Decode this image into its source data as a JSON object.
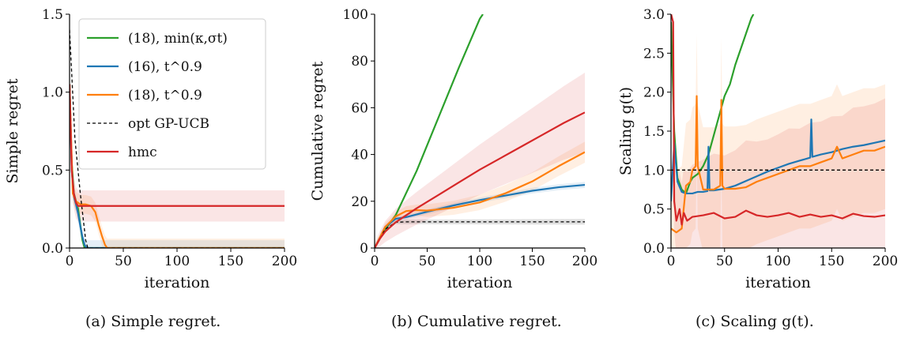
{
  "captions": [
    "(a) Simple regret.",
    "(b) Cumulative regret.",
    "(c) Scaling g(t)."
  ],
  "colors": {
    "green": "#2ca02c",
    "blue": "#1f77b4",
    "orange": "#ff7f0e",
    "black": "#000000",
    "red": "#d62728"
  },
  "chart_data": [
    {
      "type": "line",
      "xlabel": "iteration",
      "ylabel": "Simple regret",
      "xlim": [
        0,
        200
      ],
      "ylim": [
        0,
        1.5
      ],
      "xticks": [
        0,
        50,
        100,
        150,
        200
      ],
      "yticks": [
        0.0,
        0.5,
        1.0,
        1.5
      ],
      "ytick_labels": [
        "0.0",
        "0.5",
        "1.0",
        "1.5"
      ],
      "legend": {
        "placement": "upper right",
        "entries": [
          "(18), min(κ,σt)",
          "(16), t^0.9",
          "(18), t^0.9",
          "opt GP-UCB",
          "hmc"
        ]
      },
      "series": [
        {
          "name": "(18), min(κ,σt)",
          "color": "green",
          "x": [
            0,
            2,
            4,
            6,
            8,
            10,
            12,
            14,
            200
          ],
          "y": [
            1.05,
            0.55,
            0.35,
            0.3,
            0.25,
            0.15,
            0.05,
            0.0,
            0.0
          ]
        },
        {
          "name": "(16), t^0.9",
          "color": "blue",
          "band": 0.05,
          "x": [
            0,
            2,
            4,
            6,
            8,
            10,
            12,
            14,
            16,
            200
          ],
          "y": [
            1.05,
            0.5,
            0.33,
            0.28,
            0.22,
            0.14,
            0.07,
            0.02,
            0.0,
            0.0
          ]
        },
        {
          "name": "(18), t^0.9",
          "color": "orange",
          "band": 0.06,
          "x": [
            0,
            3,
            6,
            10,
            15,
            20,
            24,
            27,
            30,
            33,
            35,
            200
          ],
          "y": [
            1.05,
            0.35,
            0.3,
            0.28,
            0.28,
            0.27,
            0.23,
            0.15,
            0.08,
            0.02,
            0.0,
            0.0
          ]
        },
        {
          "name": "opt GP-UCB",
          "color": "black",
          "dashed": true,
          "x": [
            0,
            5,
            10,
            15,
            17,
            200
          ],
          "y": [
            1.4,
            0.7,
            0.35,
            0.05,
            0.0,
            0.0
          ]
        },
        {
          "name": "hmc",
          "color": "red",
          "band": 0.1,
          "x": [
            0,
            2,
            4,
            6,
            8,
            200
          ],
          "y": [
            1.05,
            0.5,
            0.35,
            0.29,
            0.27,
            0.27
          ]
        }
      ]
    },
    {
      "type": "line",
      "xlabel": "iteration",
      "ylabel": "Cumulative regret",
      "xlim": [
        0,
        200
      ],
      "ylim": [
        0,
        100
      ],
      "xticks": [
        0,
        50,
        100,
        150,
        200
      ],
      "yticks": [
        0,
        20,
        40,
        60,
        80,
        100
      ],
      "series": [
        {
          "name": "(18), min(κ,σt)",
          "color": "green",
          "x": [
            0,
            10,
            20,
            40,
            60,
            80,
            100,
            103
          ],
          "y": [
            0,
            8,
            14,
            33,
            55,
            77,
            98,
            100
          ]
        },
        {
          "name": "(16), t^0.9",
          "color": "blue",
          "band": [
            0.8,
            1.3
          ],
          "x": [
            0,
            10,
            20,
            30,
            50,
            75,
            100,
            125,
            150,
            175,
            200
          ],
          "y": [
            0,
            9,
            12.5,
            13.2,
            15.5,
            18.2,
            20.5,
            22.5,
            24.5,
            26,
            27
          ]
        },
        {
          "name": "(18), t^0.9",
          "color": "orange",
          "band": [
            1.2,
            4.5
          ],
          "x": [
            0,
            10,
            20,
            30,
            40,
            50,
            75,
            100,
            125,
            150,
            175,
            200
          ],
          "y": [
            0,
            9,
            13.5,
            15.8,
            16.2,
            16,
            17.2,
            19.5,
            23.5,
            28.5,
            35,
            41
          ]
        },
        {
          "name": "opt GP-UCB",
          "color": "black",
          "dashed": true,
          "band": [
            0.3,
            1.2
          ],
          "x": [
            0,
            10,
            20,
            30,
            200
          ],
          "y": [
            0,
            8,
            11,
            11.2,
            11.2
          ]
        },
        {
          "name": "hmc",
          "color": "red",
          "band": [
            2,
            17
          ],
          "x": [
            0,
            5,
            10,
            20,
            40,
            60,
            80,
            100,
            120,
            140,
            160,
            180,
            200
          ],
          "y": [
            0,
            4,
            7,
            11,
            17,
            22.5,
            28,
            33.5,
            38.5,
            43.5,
            48.5,
            53.5,
            58
          ]
        }
      ]
    },
    {
      "type": "line",
      "xlabel": "iteration",
      "ylabel": "Scaling g(t)",
      "xlim": [
        0,
        200
      ],
      "ylim": [
        0,
        3
      ],
      "xticks": [
        0,
        50,
        100,
        150,
        200
      ],
      "yticks": [
        0.0,
        0.5,
        1.0,
        1.5,
        2.0,
        2.5,
        3.0
      ],
      "ytick_labels": [
        "0.0",
        "0.5",
        "1.0",
        "1.5",
        "2.0",
        "2.5",
        "3.0"
      ],
      "series": [
        {
          "name": "(18), min(κ,σt)",
          "color": "green",
          "x": [
            0,
            3,
            6,
            10,
            14,
            18,
            20,
            25,
            30,
            35,
            40,
            45,
            50,
            55,
            60,
            65,
            70,
            75,
            77
          ],
          "y": [
            2.9,
            1.5,
            0.9,
            0.75,
            0.7,
            0.85,
            0.9,
            0.95,
            1.05,
            1.2,
            1.45,
            1.7,
            1.95,
            2.1,
            2.35,
            2.55,
            2.75,
            2.95,
            3.0
          ]
        },
        {
          "name": "(16), t^0.9",
          "color": "blue",
          "x": [
            0,
            3,
            6,
            10,
            14,
            20,
            25,
            30,
            34,
            35,
            36,
            40,
            50,
            60,
            70,
            80,
            90,
            100,
            110,
            120,
            130,
            131,
            132,
            140,
            150,
            160,
            170,
            180,
            190,
            200
          ],
          "y": [
            0.6,
            1.35,
            0.85,
            0.72,
            0.7,
            0.7,
            0.72,
            0.72,
            0.73,
            1.3,
            0.74,
            0.74,
            0.76,
            0.8,
            0.86,
            0.92,
            0.98,
            1.03,
            1.08,
            1.12,
            1.16,
            1.65,
            1.17,
            1.2,
            1.23,
            1.27,
            1.3,
            1.32,
            1.35,
            1.38
          ]
        },
        {
          "name": "(18), t^0.9",
          "color": "orange",
          "band": [
            0.8,
            0.8
          ],
          "x": [
            0,
            5,
            10,
            14,
            18,
            20,
            23,
            24,
            25,
            30,
            40,
            46,
            47,
            48,
            50,
            60,
            70,
            80,
            90,
            100,
            110,
            120,
            130,
            140,
            150,
            155,
            160,
            170,
            180,
            190,
            200
          ],
          "y": [
            0.25,
            0.2,
            0.25,
            0.8,
            0.85,
            1.0,
            1.05,
            1.95,
            1.05,
            0.75,
            0.75,
            0.8,
            1.9,
            0.8,
            0.76,
            0.76,
            0.78,
            0.85,
            0.9,
            0.95,
            1.0,
            1.05,
            1.05,
            1.1,
            1.15,
            1.3,
            1.15,
            1.2,
            1.25,
            1.25,
            1.3
          ]
        },
        {
          "name": "opt GP-UCB",
          "color": "black",
          "dashed": true,
          "x": [
            0,
            200
          ],
          "y": [
            1.0,
            1.0
          ]
        },
        {
          "name": "hmc",
          "color": "red",
          "band": [
            0.3,
            1.5
          ],
          "x": [
            0,
            2,
            3,
            5,
            8,
            10,
            12,
            15,
            20,
            30,
            40,
            50,
            60,
            70,
            80,
            90,
            100,
            110,
            120,
            130,
            140,
            150,
            160,
            170,
            180,
            190,
            200
          ],
          "y": [
            3.0,
            2.9,
            0.6,
            0.35,
            0.5,
            0.3,
            0.45,
            0.35,
            0.4,
            0.42,
            0.45,
            0.38,
            0.4,
            0.48,
            0.42,
            0.4,
            0.42,
            0.45,
            0.4,
            0.43,
            0.4,
            0.42,
            0.38,
            0.44,
            0.41,
            0.4,
            0.42
          ]
        }
      ]
    }
  ]
}
